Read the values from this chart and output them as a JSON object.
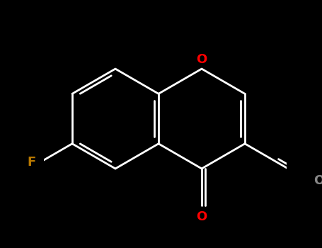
{
  "background_color": "#000000",
  "line_color": "#ffffff",
  "O_color": "#ff0000",
  "F_color": "#b87800",
  "carbonyl_O_color": "#ff0000",
  "aldehyde_O_color": "#888888",
  "figsize": [
    4.55,
    3.5
  ],
  "dpi": 100,
  "lw": 2.0,
  "text_fontsize": 13,
  "xlim": [
    -2.8,
    2.8
  ],
  "ylim": [
    -2.2,
    2.2
  ]
}
